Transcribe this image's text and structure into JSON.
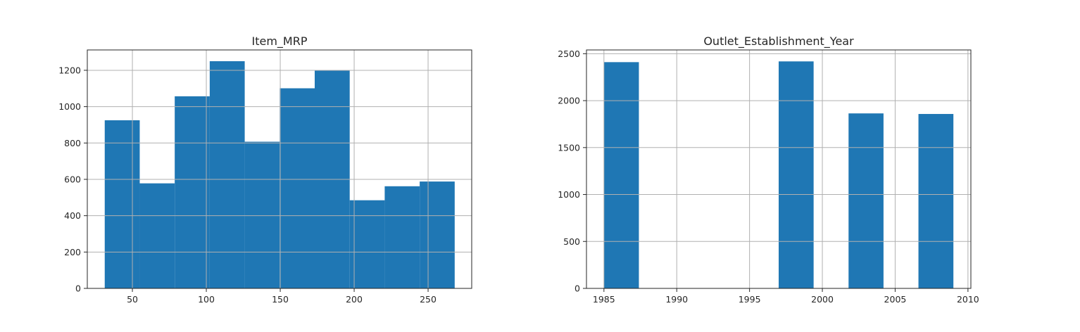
{
  "chart_data": [
    {
      "type": "bar",
      "title": "Item_MRP",
      "xlabel": "",
      "ylabel": "",
      "bins": [
        [
          31.29,
          54.96
        ],
        [
          54.96,
          78.63
        ],
        [
          78.63,
          102.3
        ],
        [
          102.3,
          125.97
        ],
        [
          125.97,
          149.64
        ],
        [
          149.64,
          173.31
        ],
        [
          173.31,
          196.98
        ],
        [
          196.98,
          220.65
        ],
        [
          220.65,
          244.32
        ],
        [
          244.32,
          267.99
        ]
      ],
      "values": [
        925,
        578,
        1057,
        1250,
        807,
        1101,
        1199,
        485,
        562,
        588
      ],
      "xlim": [
        19.5,
        279.5
      ],
      "ylim": [
        0,
        1312
      ],
      "xticks": [
        50,
        100,
        150,
        200,
        250
      ],
      "yticks": [
        0,
        200,
        400,
        600,
        800,
        1000,
        1200
      ],
      "grid": true,
      "color": "#1f77b4"
    },
    {
      "type": "bar",
      "title": "Outlet_Establishment_Year",
      "xlabel": "",
      "ylabel": "",
      "bins": [
        [
          1985,
          1987.4
        ],
        [
          1987.4,
          1989.8
        ],
        [
          1989.8,
          1992.2
        ],
        [
          1992.2,
          1994.6
        ],
        [
          1994.6,
          1997
        ],
        [
          1997,
          1999.4
        ],
        [
          1999.4,
          2001.8
        ],
        [
          2001.8,
          2004.2
        ],
        [
          2004.2,
          2006.6
        ],
        [
          2006.6,
          2009
        ]
      ],
      "values": [
        2410,
        0,
        0,
        0,
        0,
        2418,
        0,
        1864,
        0,
        1858
      ],
      "xlim": [
        1983.8,
        2010.2
      ],
      "ylim": [
        0,
        2540
      ],
      "xticks": [
        1985,
        1990,
        1995,
        2000,
        2005,
        2010
      ],
      "yticks": [
        0,
        500,
        1000,
        1500,
        2000,
        2500
      ],
      "grid": true,
      "color": "#1f77b4"
    }
  ]
}
